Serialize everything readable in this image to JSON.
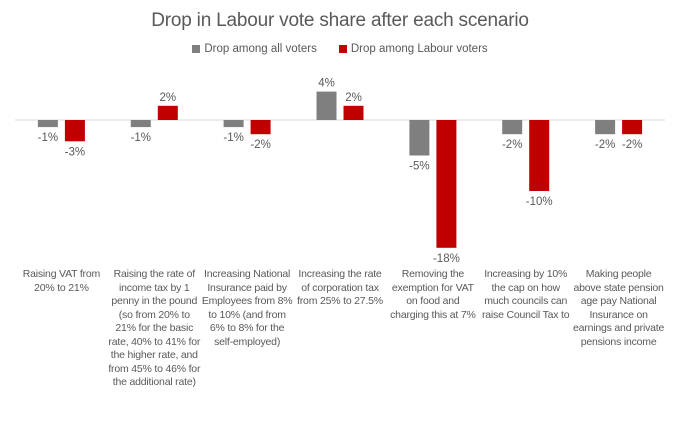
{
  "chart_data": {
    "type": "bar",
    "title": "Drop in Labour vote share after each scenario",
    "xlabel": "",
    "ylabel": "",
    "ylim": [
      -18,
      4
    ],
    "grid": false,
    "legend_position": "top-center",
    "categories": [
      "Raising VAT from 20% to 21%",
      "Raising the rate of income tax by 1 penny in the pound (so from 20% to 21% for the basic rate, 40% to 41% for the higher rate, and from 45% to 46% for the additional rate)",
      "Increasing National Insurance paid by Employees from 8% to 10% (and from 6% to 8% for the self-employed)",
      "Increasing the rate of corporation tax from 25% to 27.5%",
      "Removing the exemption for VAT on food and charging this at 7%",
      "Increasing by 10% the cap on how much councils can raise Council Tax to",
      "Making people above state pension age pay National Insurance on earnings and private pensions income"
    ],
    "series": [
      {
        "name": "Drop among all voters",
        "color": "#7f7f7f",
        "values": [
          -1,
          -1,
          -1,
          4,
          -5,
          -2,
          -2
        ],
        "labels": [
          "-1%",
          "-1%",
          "-1%",
          "4%",
          "-5%",
          "-2%",
          "-2%"
        ]
      },
      {
        "name": "Drop among Labour voters",
        "color": "#c00000",
        "values": [
          -3,
          2,
          -2,
          2,
          -18,
          -10,
          -2
        ],
        "labels": [
          "-3%",
          "2%",
          "-2%",
          "2%",
          "-18%",
          "-10%",
          "-2%"
        ]
      }
    ]
  }
}
